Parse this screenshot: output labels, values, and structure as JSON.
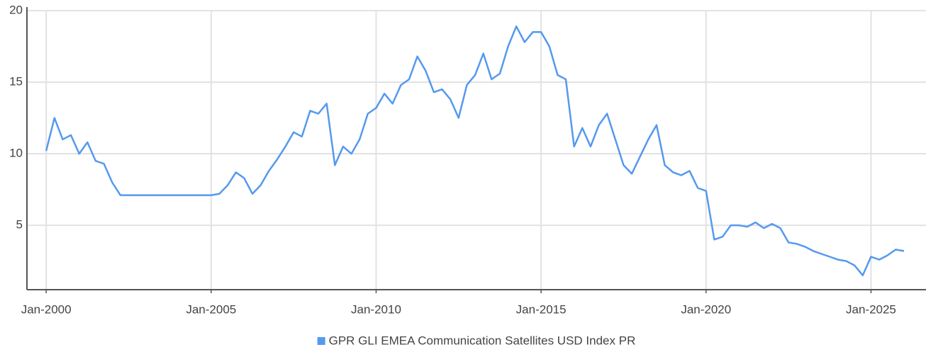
{
  "chart_data": {
    "type": "line",
    "x": [
      "Jan-2000",
      "Apr-2000",
      "Jul-2000",
      "Oct-2000",
      "Jan-2001",
      "Apr-2001",
      "Jul-2001",
      "Oct-2001",
      "Jan-2002",
      "Apr-2002",
      "Jul-2002",
      "Oct-2002",
      "Jan-2003",
      "Apr-2003",
      "Jul-2003",
      "Oct-2003",
      "Jan-2004",
      "Apr-2004",
      "Jul-2004",
      "Oct-2004",
      "Jan-2005",
      "Apr-2005",
      "Jul-2005",
      "Oct-2005",
      "Jan-2006",
      "Apr-2006",
      "Jul-2006",
      "Oct-2006",
      "Jan-2007",
      "Apr-2007",
      "Jul-2007",
      "Oct-2007",
      "Jan-2008",
      "Apr-2008",
      "Jul-2008",
      "Oct-2008",
      "Jan-2009",
      "Apr-2009",
      "Jul-2009",
      "Oct-2009",
      "Jan-2010",
      "Apr-2010",
      "Jul-2010",
      "Oct-2010",
      "Jan-2011",
      "Apr-2011",
      "Jul-2011",
      "Oct-2011",
      "Jan-2012",
      "Apr-2012",
      "Jul-2012",
      "Oct-2012",
      "Jan-2013",
      "Apr-2013",
      "Jul-2013",
      "Oct-2013",
      "Jan-2014",
      "Apr-2014",
      "Jul-2014",
      "Oct-2014",
      "Jan-2015",
      "Apr-2015",
      "Jul-2015",
      "Oct-2015",
      "Jan-2016",
      "Apr-2016",
      "Jul-2016",
      "Oct-2016",
      "Jan-2017",
      "Apr-2017",
      "Jul-2017",
      "Oct-2017",
      "Jan-2018",
      "Apr-2018",
      "Jul-2018",
      "Oct-2018",
      "Jan-2019",
      "Apr-2019",
      "Jul-2019",
      "Oct-2019",
      "Jan-2020",
      "Apr-2020",
      "Jul-2020",
      "Oct-2020",
      "Jan-2021",
      "Apr-2021",
      "Jul-2021",
      "Oct-2021",
      "Jan-2022",
      "Apr-2022",
      "Jul-2022",
      "Oct-2022",
      "Jan-2023",
      "Apr-2023",
      "Jul-2023",
      "Oct-2023",
      "Jan-2024",
      "Apr-2024",
      "Jul-2024",
      "Oct-2024",
      "Jan-2025",
      "Apr-2025",
      "Jul-2025",
      "Oct-2025",
      "Jan-2026"
    ],
    "series": [
      {
        "name": "GPR GLI EMEA Communication Satellites USD Index PR",
        "color": "#5599ee",
        "values": [
          10.2,
          12.5,
          11.0,
          11.3,
          10.0,
          10.8,
          9.5,
          9.3,
          8.0,
          7.1,
          7.1,
          7.1,
          7.1,
          7.1,
          7.1,
          7.1,
          7.1,
          7.1,
          7.1,
          7.1,
          7.1,
          7.2,
          7.8,
          8.7,
          8.3,
          7.2,
          7.8,
          8.8,
          9.6,
          10.5,
          11.5,
          11.2,
          13.0,
          12.8,
          13.5,
          9.2,
          10.5,
          10.0,
          11.0,
          12.8,
          13.2,
          14.2,
          13.5,
          14.8,
          15.2,
          16.8,
          15.8,
          14.3,
          14.5,
          13.8,
          12.5,
          14.8,
          15.5,
          17.0,
          15.2,
          15.6,
          17.5,
          18.9,
          17.8,
          18.5,
          18.5,
          17.5,
          15.5,
          15.2,
          10.5,
          11.8,
          10.5,
          12.0,
          12.8,
          11.0,
          9.2,
          8.6,
          9.8,
          11.0,
          12.0,
          9.2,
          8.7,
          8.5,
          8.8,
          7.6,
          7.4,
          4.0,
          4.2,
          5.0,
          5.0,
          4.9,
          5.2,
          4.8,
          5.1,
          4.8,
          3.8,
          3.7,
          3.5,
          3.2,
          3.0,
          2.8,
          2.6,
          2.5,
          2.2,
          1.5,
          2.8,
          2.6,
          2.9,
          3.3,
          3.2
        ]
      }
    ],
    "xlim": [
      "Jun-1999",
      "Sep-2026"
    ],
    "xticks": [
      "Jan-2000",
      "Jan-2005",
      "Jan-2010",
      "Jan-2015",
      "Jan-2020",
      "Jan-2025"
    ],
    "ylim": [
      0.5,
      20
    ],
    "yticks": [
      5,
      10,
      15,
      20
    ],
    "grid": true,
    "legend": "bottom"
  }
}
